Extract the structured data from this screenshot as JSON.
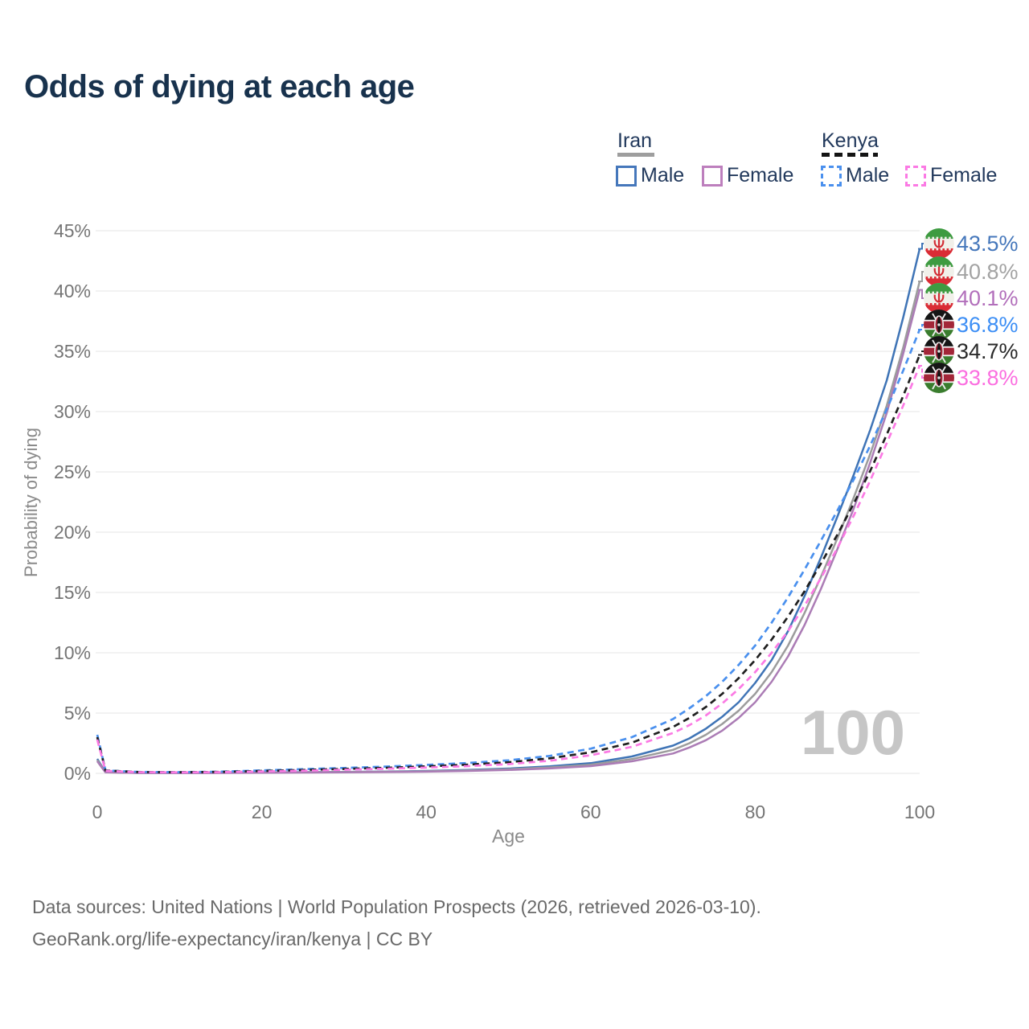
{
  "title": "Odds of dying at each age",
  "legend": {
    "groups": [
      {
        "label": "Iran",
        "line_style": "solid",
        "line_color": "#9e9e9e",
        "items": [
          {
            "label": "Male",
            "color": "#4577bb",
            "style": "solid"
          },
          {
            "label": "Female",
            "color": "#bd7fbd",
            "style": "solid"
          }
        ]
      },
      {
        "label": "Kenya",
        "line_style": "dashed",
        "line_color": "#141414",
        "items": [
          {
            "label": "Male",
            "color": "#4a90ee",
            "style": "dashed"
          },
          {
            "label": "Female",
            "color": "#fb7ae4",
            "style": "dashed"
          }
        ]
      }
    ]
  },
  "chart_data": {
    "type": "line",
    "title": "Odds of dying at each age",
    "xlabel": "Age",
    "ylabel": "Probability of dying",
    "xlim": [
      0,
      100
    ],
    "ylim": [
      0,
      45
    ],
    "xticks": [
      0,
      20,
      40,
      60,
      80,
      100
    ],
    "yticks": [
      0,
      5,
      10,
      15,
      20,
      25,
      30,
      35,
      40,
      45
    ],
    "ytick_suffix": "%",
    "grid": "horizontal",
    "legend_position": "top-right",
    "watermark": "100",
    "x": [
      0,
      1,
      5,
      10,
      15,
      20,
      25,
      30,
      35,
      40,
      45,
      50,
      55,
      60,
      65,
      70,
      72,
      74,
      76,
      78,
      80,
      82,
      84,
      86,
      88,
      90,
      92,
      94,
      96,
      98,
      100
    ],
    "series": [
      {
        "name": "Iran Male",
        "flag": "iran",
        "dash": "solid",
        "color": "#3f74b6",
        "label_color": "#4577bb",
        "end_label": "43.5%",
        "values": [
          1.2,
          0.1,
          0.04,
          0.03,
          0.05,
          0.08,
          0.1,
          0.12,
          0.15,
          0.2,
          0.28,
          0.4,
          0.58,
          0.85,
          1.4,
          2.3,
          2.9,
          3.7,
          4.7,
          5.9,
          7.5,
          9.4,
          11.8,
          14.7,
          17.9,
          21.3,
          24.8,
          28.5,
          32.6,
          37.8,
          43.5
        ]
      },
      {
        "name": "Iran",
        "flag": "iran",
        "dash": "solid",
        "color": "#9c9c9c",
        "label_color": "#a3a3a3",
        "end_label": "40.8%",
        "values": [
          1.1,
          0.09,
          0.035,
          0.027,
          0.042,
          0.065,
          0.085,
          0.105,
          0.13,
          0.17,
          0.24,
          0.34,
          0.49,
          0.72,
          1.18,
          1.95,
          2.5,
          3.2,
          4.1,
          5.2,
          6.6,
          8.4,
          10.6,
          13.3,
          16.3,
          19.5,
          22.9,
          26.5,
          30.5,
          35.3,
          40.8
        ]
      },
      {
        "name": "Iran Female",
        "flag": "iran",
        "dash": "solid",
        "color": "#ab7cb5",
        "label_color": "#b26fbb",
        "end_label": "40.1%",
        "values": [
          1.0,
          0.08,
          0.03,
          0.024,
          0.035,
          0.05,
          0.065,
          0.085,
          0.105,
          0.14,
          0.2,
          0.28,
          0.41,
          0.6,
          1.0,
          1.65,
          2.15,
          2.75,
          3.55,
          4.6,
          5.9,
          7.6,
          9.7,
          12.3,
          15.3,
          18.6,
          22.0,
          25.8,
          29.9,
          34.8,
          40.1
        ]
      },
      {
        "name": "Kenya Male",
        "flag": "kenya",
        "dash": "dashed",
        "color": "#4a90ee",
        "label_color": "#3c8ef5",
        "end_label": "36.8%",
        "values": [
          3.2,
          0.25,
          0.12,
          0.1,
          0.14,
          0.25,
          0.35,
          0.45,
          0.56,
          0.7,
          0.86,
          1.08,
          1.45,
          2.05,
          3.0,
          4.5,
          5.4,
          6.4,
          7.6,
          9.0,
          10.6,
          12.5,
          14.6,
          16.9,
          19.3,
          21.8,
          24.4,
          27.2,
          30.2,
          33.4,
          36.8
        ]
      },
      {
        "name": "Kenya",
        "flag": "kenya",
        "dash": "dashed",
        "color": "#1f1f1f",
        "label_color": "#2a2a2a",
        "end_label": "34.7%",
        "values": [
          3.0,
          0.23,
          0.11,
          0.09,
          0.12,
          0.2,
          0.28,
          0.37,
          0.46,
          0.58,
          0.72,
          0.92,
          1.25,
          1.75,
          2.55,
          3.85,
          4.6,
          5.5,
          6.6,
          7.9,
          9.4,
          11.1,
          13.0,
          15.1,
          17.4,
          19.8,
          22.4,
          25.1,
          28.1,
          31.3,
          34.7
        ]
      },
      {
        "name": "Kenya Female",
        "flag": "kenya",
        "dash": "dashed",
        "color": "#fb7ae4",
        "label_color": "#fb6ee0",
        "end_label": "33.8%",
        "values": [
          2.8,
          0.21,
          0.1,
          0.08,
          0.1,
          0.16,
          0.22,
          0.3,
          0.38,
          0.48,
          0.6,
          0.77,
          1.05,
          1.5,
          2.2,
          3.35,
          4.0,
          4.8,
          5.8,
          7.0,
          8.4,
          10.0,
          11.8,
          13.9,
          16.2,
          18.7,
          21.4,
          24.3,
          27.4,
          30.5,
          33.8
        ]
      }
    ]
  },
  "palette": {
    "title": "#18324d",
    "grid": "#e9e9e9",
    "tick": "#757575",
    "axis_label": "#8a8a8a",
    "watermark": "#c6c6c6",
    "footer": "#696969"
  },
  "footer": {
    "line1": "Data sources: United Nations | World Population Prospects (2026, retrieved 2026-03-10).",
    "line2": "GeoRank.org/life-expectancy/iran/kenya | CC BY"
  }
}
